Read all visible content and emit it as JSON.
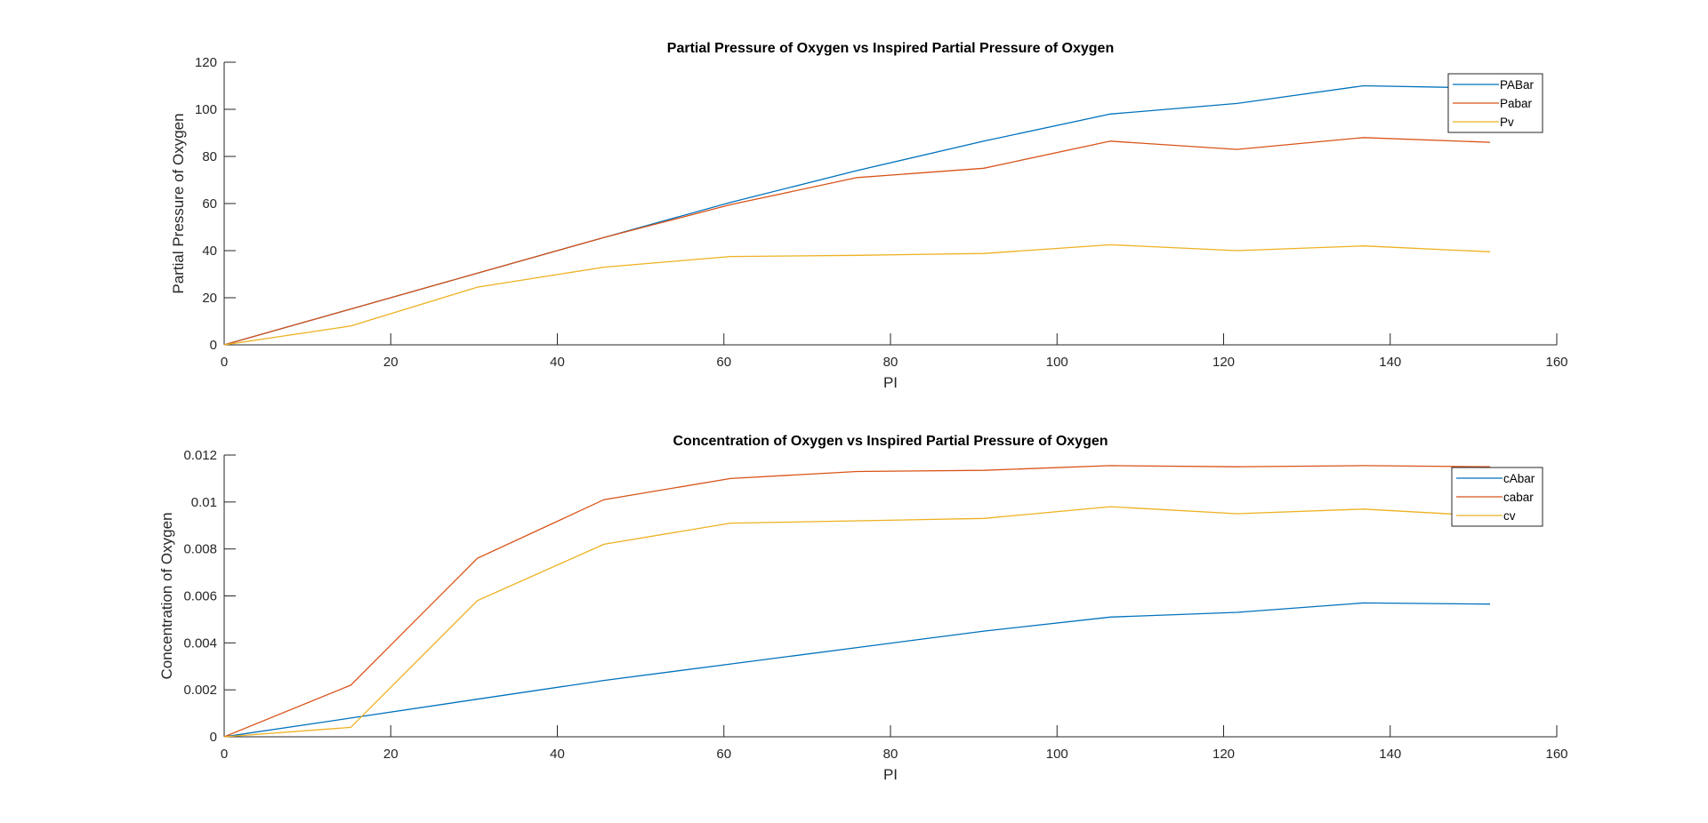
{
  "chart_data": [
    {
      "type": "line",
      "title": "Partial Pressure of Oxygen vs Inspired Partial Pressure of Oxygen",
      "xlabel": "PI",
      "ylabel": "Partial Pressure of Oxygen",
      "xlim": [
        0,
        160
      ],
      "ylim": [
        0,
        120
      ],
      "xticks": [
        "0",
        "20",
        "40",
        "60",
        "80",
        "100",
        "120",
        "140",
        "160"
      ],
      "yticks": [
        "0",
        "20",
        "40",
        "60",
        "80",
        "100",
        "120"
      ],
      "grid": false,
      "legend_position": "top-right",
      "x": [
        0,
        15.2,
        30.4,
        45.6,
        60.8,
        76,
        91.2,
        106.4,
        121.6,
        136.8,
        152
      ],
      "series": [
        {
          "name": "PABar",
          "color": "#0072BD",
          "values": [
            0,
            15.2,
            30.4,
            45.6,
            60.5,
            74,
            86.5,
            98,
            102.5,
            110,
            109
          ]
        },
        {
          "name": "Pabar",
          "color": "#D95319",
          "values": [
            0,
            15.2,
            30.4,
            45.6,
            59.5,
            71,
            75,
            86.5,
            83,
            88,
            86
          ]
        },
        {
          "name": "Pv",
          "color": "#EDB120",
          "values": [
            0,
            8,
            24.5,
            33,
            37.5,
            38,
            38.8,
            42.5,
            40,
            42,
            39.5
          ]
        }
      ]
    },
    {
      "type": "line",
      "title": "Concentration of Oxygen vs Inspired Partial Pressure of Oxygen",
      "xlabel": "PI",
      "ylabel": "Concentration of Oxygen",
      "xlim": [
        0,
        160
      ],
      "ylim": [
        0,
        0.012
      ],
      "xticks": [
        "0",
        "20",
        "40",
        "60",
        "80",
        "100",
        "120",
        "140",
        "160"
      ],
      "yticks": [
        "0",
        "0.002",
        "0.004",
        "0.006",
        "0.008",
        "0.01",
        "0.012"
      ],
      "grid": false,
      "legend_position": "top-right",
      "x": [
        0,
        15.2,
        30.4,
        45.6,
        60.8,
        76,
        91.2,
        106.4,
        121.6,
        136.8,
        152
      ],
      "series": [
        {
          "name": "cAbar",
          "color": "#0072BD",
          "values": [
            0,
            0.0008,
            0.0016,
            0.0024,
            0.0031,
            0.0038,
            0.0045,
            0.0051,
            0.0053,
            0.0057,
            0.00565
          ]
        },
        {
          "name": "cabar",
          "color": "#D95319",
          "values": [
            0,
            0.0022,
            0.0076,
            0.0101,
            0.011,
            0.0113,
            0.01135,
            0.01155,
            0.0115,
            0.01155,
            0.0115
          ]
        },
        {
          "name": "cv",
          "color": "#EDB120",
          "values": [
            0,
            0.0004,
            0.0058,
            0.0082,
            0.0091,
            0.0092,
            0.0093,
            0.0098,
            0.0095,
            0.0097,
            0.0094
          ]
        }
      ]
    }
  ]
}
